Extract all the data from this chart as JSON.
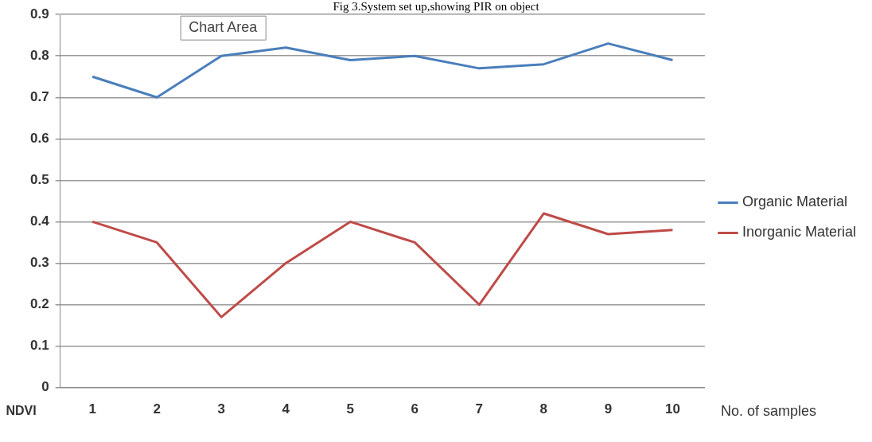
{
  "chart_data": {
    "type": "line",
    "title": "Fig 3.System set up,showing PIR on object",
    "xlabel": "No. of samples",
    "ylabel": "NDVI",
    "categories": [
      "1",
      "2",
      "3",
      "4",
      "5",
      "6",
      "7",
      "8",
      "9",
      "10"
    ],
    "series": [
      {
        "name": "Organic Material",
        "color": "#4a7ebb",
        "values": [
          0.75,
          0.7,
          0.8,
          0.82,
          0.79,
          0.8,
          0.77,
          0.78,
          0.83,
          0.79
        ]
      },
      {
        "name": "Inorganic Material",
        "color": "#be4b48",
        "values": [
          0.4,
          0.35,
          0.17,
          0.3,
          0.4,
          0.35,
          0.2,
          0.42,
          0.37,
          0.38
        ]
      }
    ],
    "ylim": [
      0,
      0.9
    ],
    "yticks": [
      0,
      0.1,
      0.2,
      0.3,
      0.4,
      0.5,
      0.6,
      0.7,
      0.8,
      0.9
    ],
    "grid": "y",
    "legend": "right",
    "marker": "none",
    "line_style": "solid",
    "annotations": [
      "Chart Area"
    ]
  }
}
